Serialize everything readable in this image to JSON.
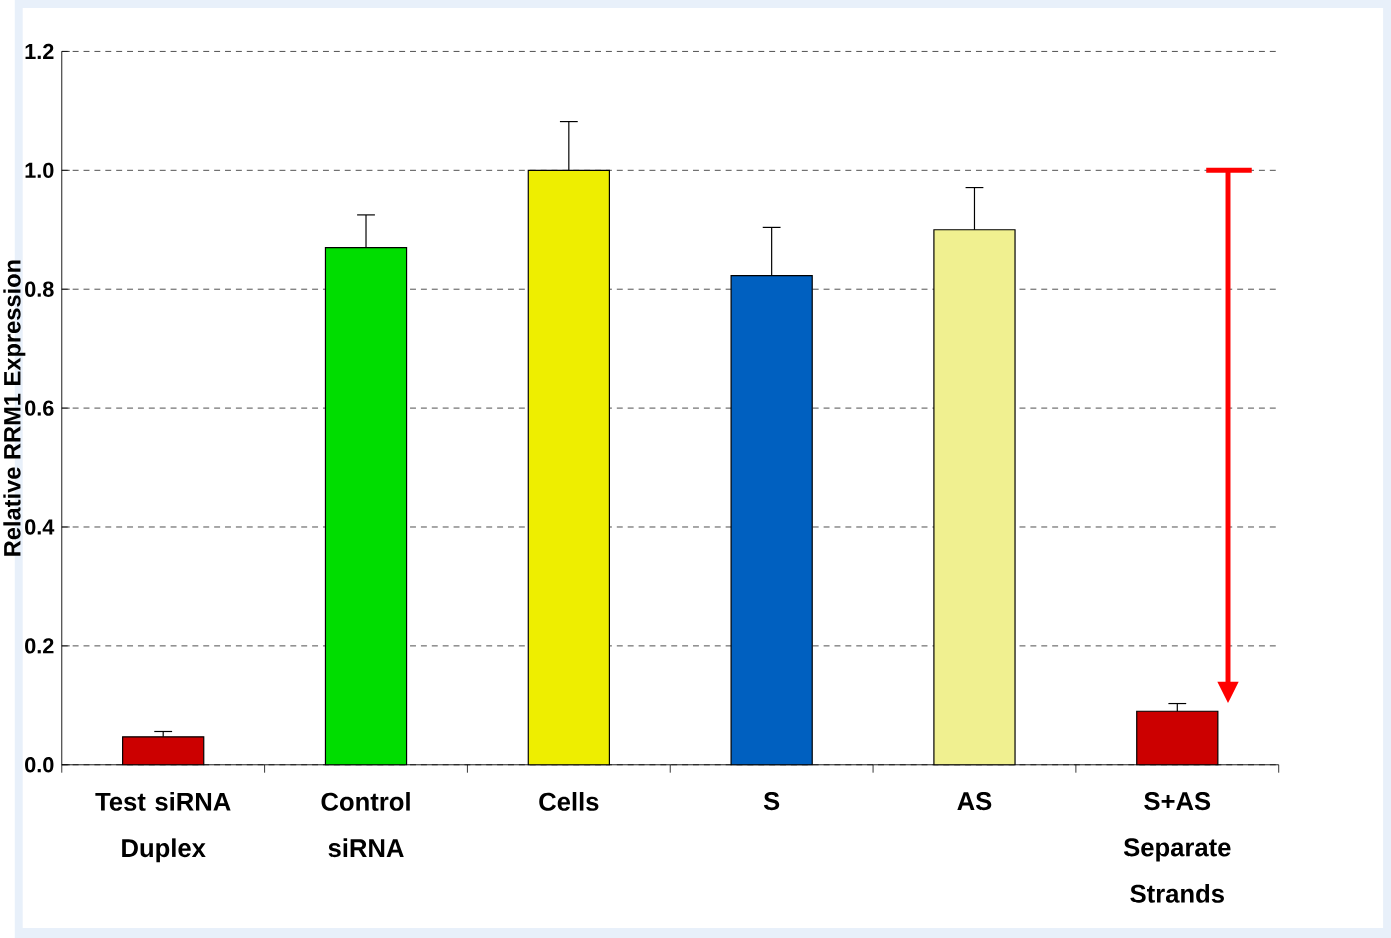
{
  "chart_data": {
    "type": "bar",
    "ylabel": "Relative RRM1 Expression",
    "categories": [
      "Test siRNA Duplex",
      "Control siRNA",
      "Cells",
      "S",
      "AS",
      "S+AS Separate Strands"
    ],
    "values": [
      0.047,
      0.87,
      1.0,
      0.823,
      0.9,
      0.09
    ],
    "errors": [
      0.009,
      0.055,
      0.082,
      0.081,
      0.071,
      0.013
    ],
    "colors": [
      "#cc0000",
      "#00dd00",
      "#eeee00",
      "#0060c0",
      "#f0f090",
      "#cc0000"
    ],
    "ylim": [
      0,
      1.2
    ],
    "yticks": [
      {
        "value": 0,
        "label": "0.0"
      },
      0.2,
      0.4,
      0.6,
      0.8,
      {
        "value": 1,
        "label": "1.0"
      },
      1.2
    ],
    "grid": "y"
  }
}
